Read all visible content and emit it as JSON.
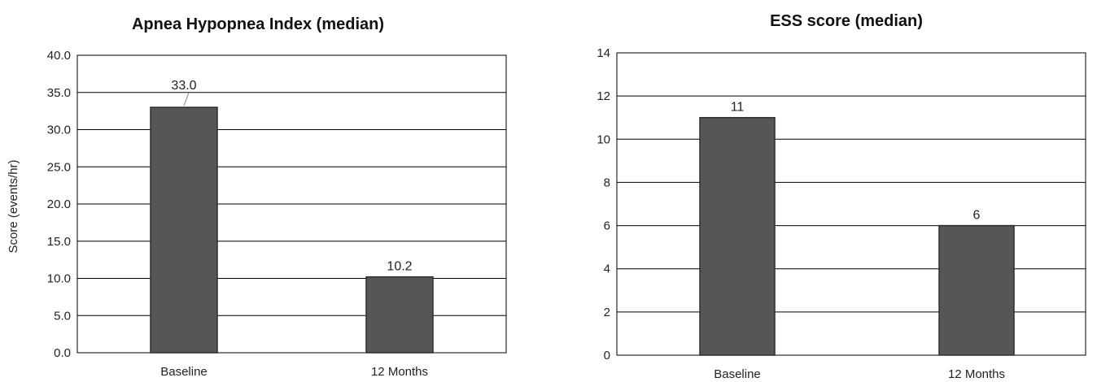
{
  "chart_data": [
    {
      "type": "bar",
      "title": "Apnea Hypopnea Index (median)",
      "ylabel": "Score (events/hr)",
      "xlabel": "",
      "categories": [
        "Baseline",
        "12 Months"
      ],
      "values": [
        33.0,
        10.2
      ],
      "data_labels": [
        "33.0",
        "10.2"
      ],
      "ylim": [
        0,
        40
      ],
      "yticks": [
        "0.0",
        "5.0",
        "10.0",
        "15.0",
        "20.0",
        "25.0",
        "30.0",
        "35.0",
        "40.0"
      ],
      "grid": true,
      "legend": "none",
      "bar_color": "#565656"
    },
    {
      "type": "bar",
      "title": "ESS score (median)",
      "ylabel": "",
      "xlabel": "",
      "categories": [
        "Baseline",
        "12 Months"
      ],
      "values": [
        11,
        6
      ],
      "data_labels": [
        "11",
        "6"
      ],
      "ylim": [
        0,
        14
      ],
      "yticks": [
        "0",
        "2",
        "4",
        "6",
        "8",
        "10",
        "12",
        "14"
      ],
      "grid": true,
      "legend": "none",
      "bar_color": "#565656"
    }
  ]
}
